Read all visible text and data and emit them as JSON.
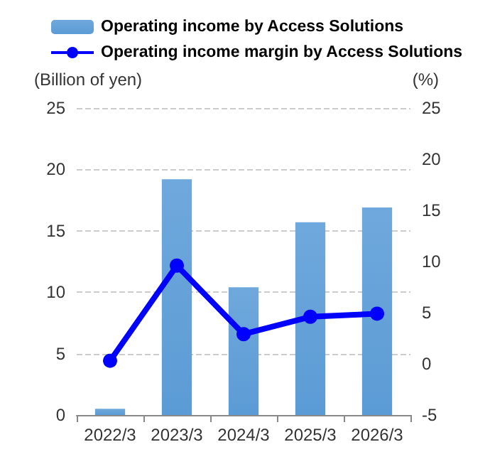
{
  "chart_data": {
    "type": "bar",
    "categories": [
      "2022/3",
      "2023/3",
      "2024/3",
      "2025/3",
      "2026/3"
    ],
    "series": [
      {
        "name": "Operating income by Access Solutions",
        "color": "#5b9bd5",
        "values": [
          0.5,
          19.2,
          10.4,
          15.7,
          16.9
        ]
      },
      {
        "name": "Operating income margin by Access Solutions",
        "type": "line",
        "axis": "y2",
        "color": "#0000ff",
        "values": [
          0.3,
          9.6,
          2.9,
          4.6,
          4.9
        ]
      }
    ],
    "ylabel": "(Billion of yen)",
    "y2label": "(%)",
    "ylim": [
      0,
      25
    ],
    "yticks": [
      0,
      5,
      10,
      15,
      20,
      25
    ],
    "y2lim": [
      -5,
      25
    ],
    "y2ticks": [
      -5,
      0,
      5,
      10,
      15,
      20,
      25
    ],
    "grid": "y",
    "legend": "top",
    "marker": "circle"
  }
}
